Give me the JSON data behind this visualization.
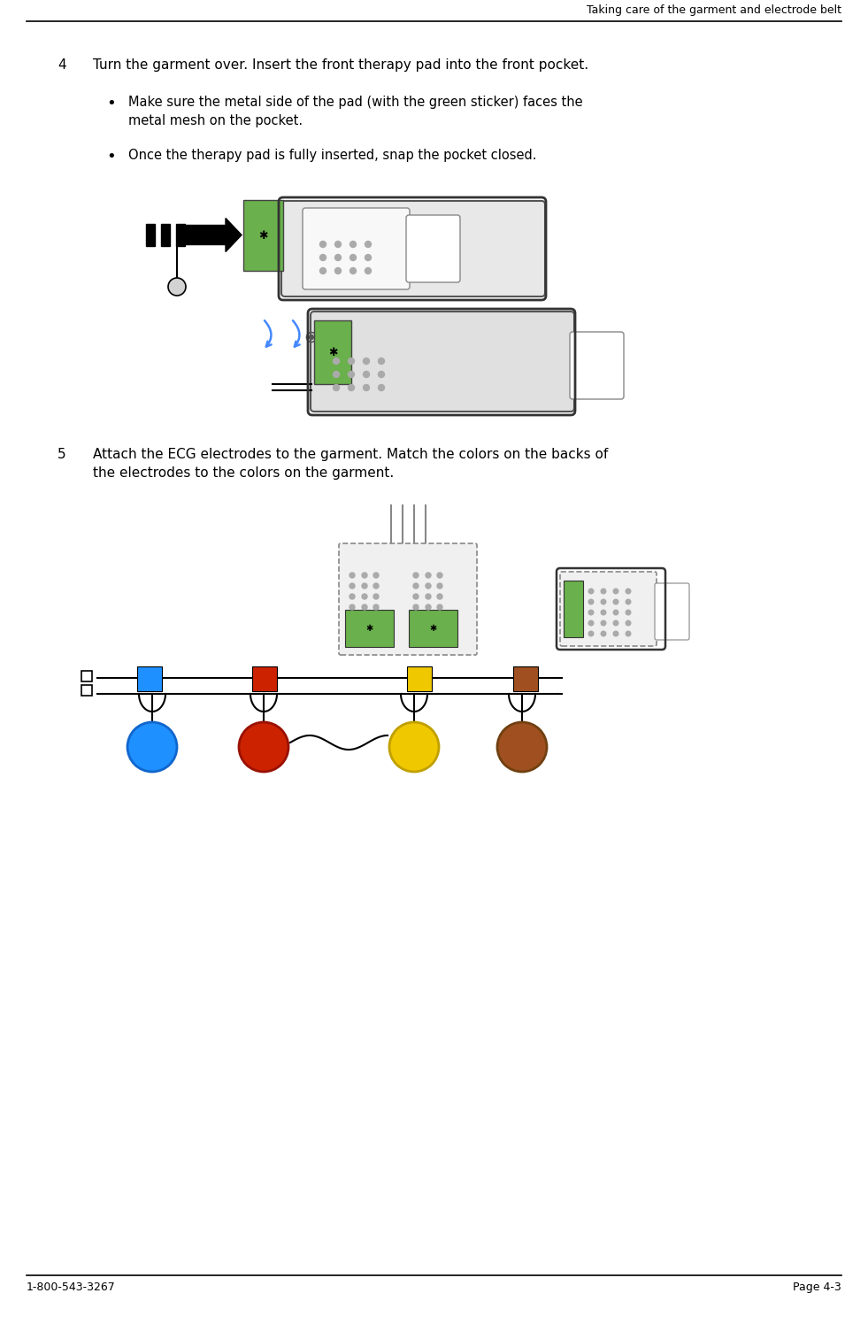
{
  "title_text": "Taking care of the garment and electrode belt",
  "footer_left": "1-800-543-3267",
  "footer_right": "Page 4-3",
  "step4_number": "4",
  "step4_text": "Turn the garment over. Insert the front therapy pad into the front pocket.",
  "bullet1": "Make sure the metal side of the pad (with the green sticker) faces the\nmetal mesh on the pocket.",
  "bullet2": "Once the therapy pad is fully inserted, snap the pocket closed.",
  "step5_number": "5",
  "step5_text": "Attach the ECG electrodes to the garment. Match the colors on the backs of\nthe electrodes to the colors on the garment.",
  "bg_color": "#ffffff",
  "text_color": "#000000",
  "green_color": "#6ab04c",
  "blue_color": "#1e90ff",
  "red_color": "#cc2200",
  "yellow_color": "#f0c800",
  "brown_color": "#a05020"
}
